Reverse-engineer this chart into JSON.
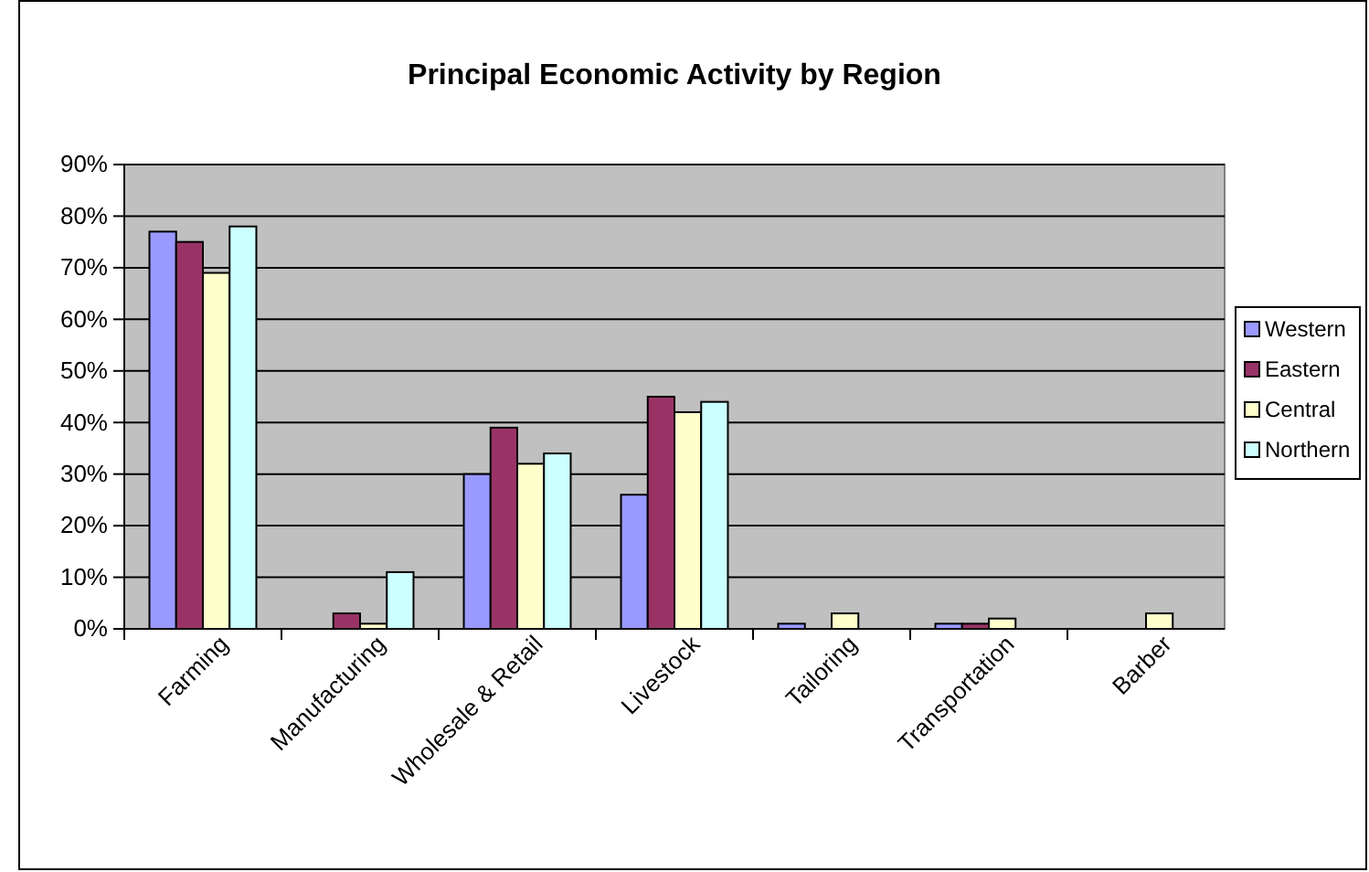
{
  "chart_data": {
    "type": "bar",
    "title": "Principal Economic Activity by Region",
    "categories": [
      "Farming",
      "Manufacturing",
      "Wholesale & Retail",
      "Livestock",
      "Tailoring",
      "Transportation",
      "Barber"
    ],
    "series": [
      {
        "name": "Western",
        "color": "#9999ff",
        "values": [
          77,
          null,
          30,
          26,
          1,
          1,
          null
        ]
      },
      {
        "name": "Eastern",
        "color": "#993366",
        "values": [
          75,
          3,
          39,
          45,
          null,
          1,
          null
        ]
      },
      {
        "name": "Central",
        "color": "#ffffcc",
        "values": [
          69,
          1,
          32,
          42,
          3,
          2,
          3
        ]
      },
      {
        "name": "Northern",
        "color": "#ccffff",
        "values": [
          78,
          11,
          34,
          44,
          null,
          null,
          null
        ]
      }
    ],
    "ylim": [
      0,
      90
    ],
    "yticks": [
      {
        "value": 0,
        "label": "0%"
      },
      {
        "value": 10,
        "label": "10%"
      },
      {
        "value": 20,
        "label": "20%"
      },
      {
        "value": 30,
        "label": "30%"
      },
      {
        "value": 40,
        "label": "40%"
      },
      {
        "value": 50,
        "label": "50%"
      },
      {
        "value": 60,
        "label": "60%"
      },
      {
        "value": 70,
        "label": "70%"
      },
      {
        "value": 80,
        "label": "80%"
      },
      {
        "value": 90,
        "label": "90%"
      }
    ],
    "grid": "y",
    "legend": "right"
  }
}
